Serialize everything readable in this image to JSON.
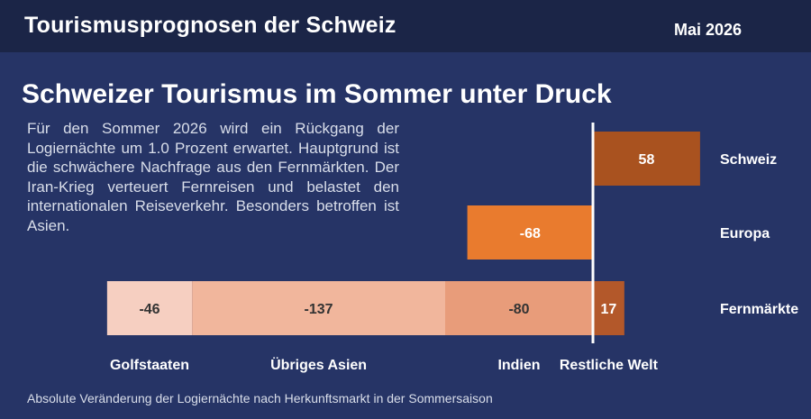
{
  "header": {
    "title": "Tourismusprognosen der Schweiz",
    "date": "Mai 2026"
  },
  "headline": "Schweizer Tourismus im Sommer unter Druck",
  "intro": "Für den Sommer 2026 wird ein Rückgang der Logiernächte um 1.0 Prozent erwartet. Hauptgrund ist die schwächere Nachfrage aus den Fernmärkten. Der Iran-Krieg verteuert Fernreisen und belastet den internationalen Reiseverkehr. Besonders betroffen ist Asien.",
  "footnote": "Absolute Veränderung der Logiernächte nach Herkunftsmarkt in der Sommersaison",
  "chart_data": {
    "type": "bar",
    "orientation": "horizontal",
    "rows": [
      {
        "name": "Schweiz",
        "segments": [
          {
            "label": "",
            "value": 58,
            "color": "#a9521f"
          }
        ]
      },
      {
        "name": "Europa",
        "segments": [
          {
            "label": "",
            "value": -68,
            "color": "#e97b2e"
          }
        ]
      },
      {
        "name": "Fernmärkte",
        "segments": [
          {
            "label": "Golfstaaten",
            "value": -46,
            "color": "#f6cfc1"
          },
          {
            "label": "Übriges Asien",
            "value": -137,
            "color": "#f1b69c"
          },
          {
            "label": "Indien",
            "value": -80,
            "color": "#e89c7a"
          },
          {
            "label": "Restliche Welt",
            "value": 17,
            "color": "#b3582a"
          }
        ]
      }
    ],
    "zero_line_color": "#ffffff",
    "text_color_light": "#ffffff",
    "text_color_dark": "#333333"
  }
}
